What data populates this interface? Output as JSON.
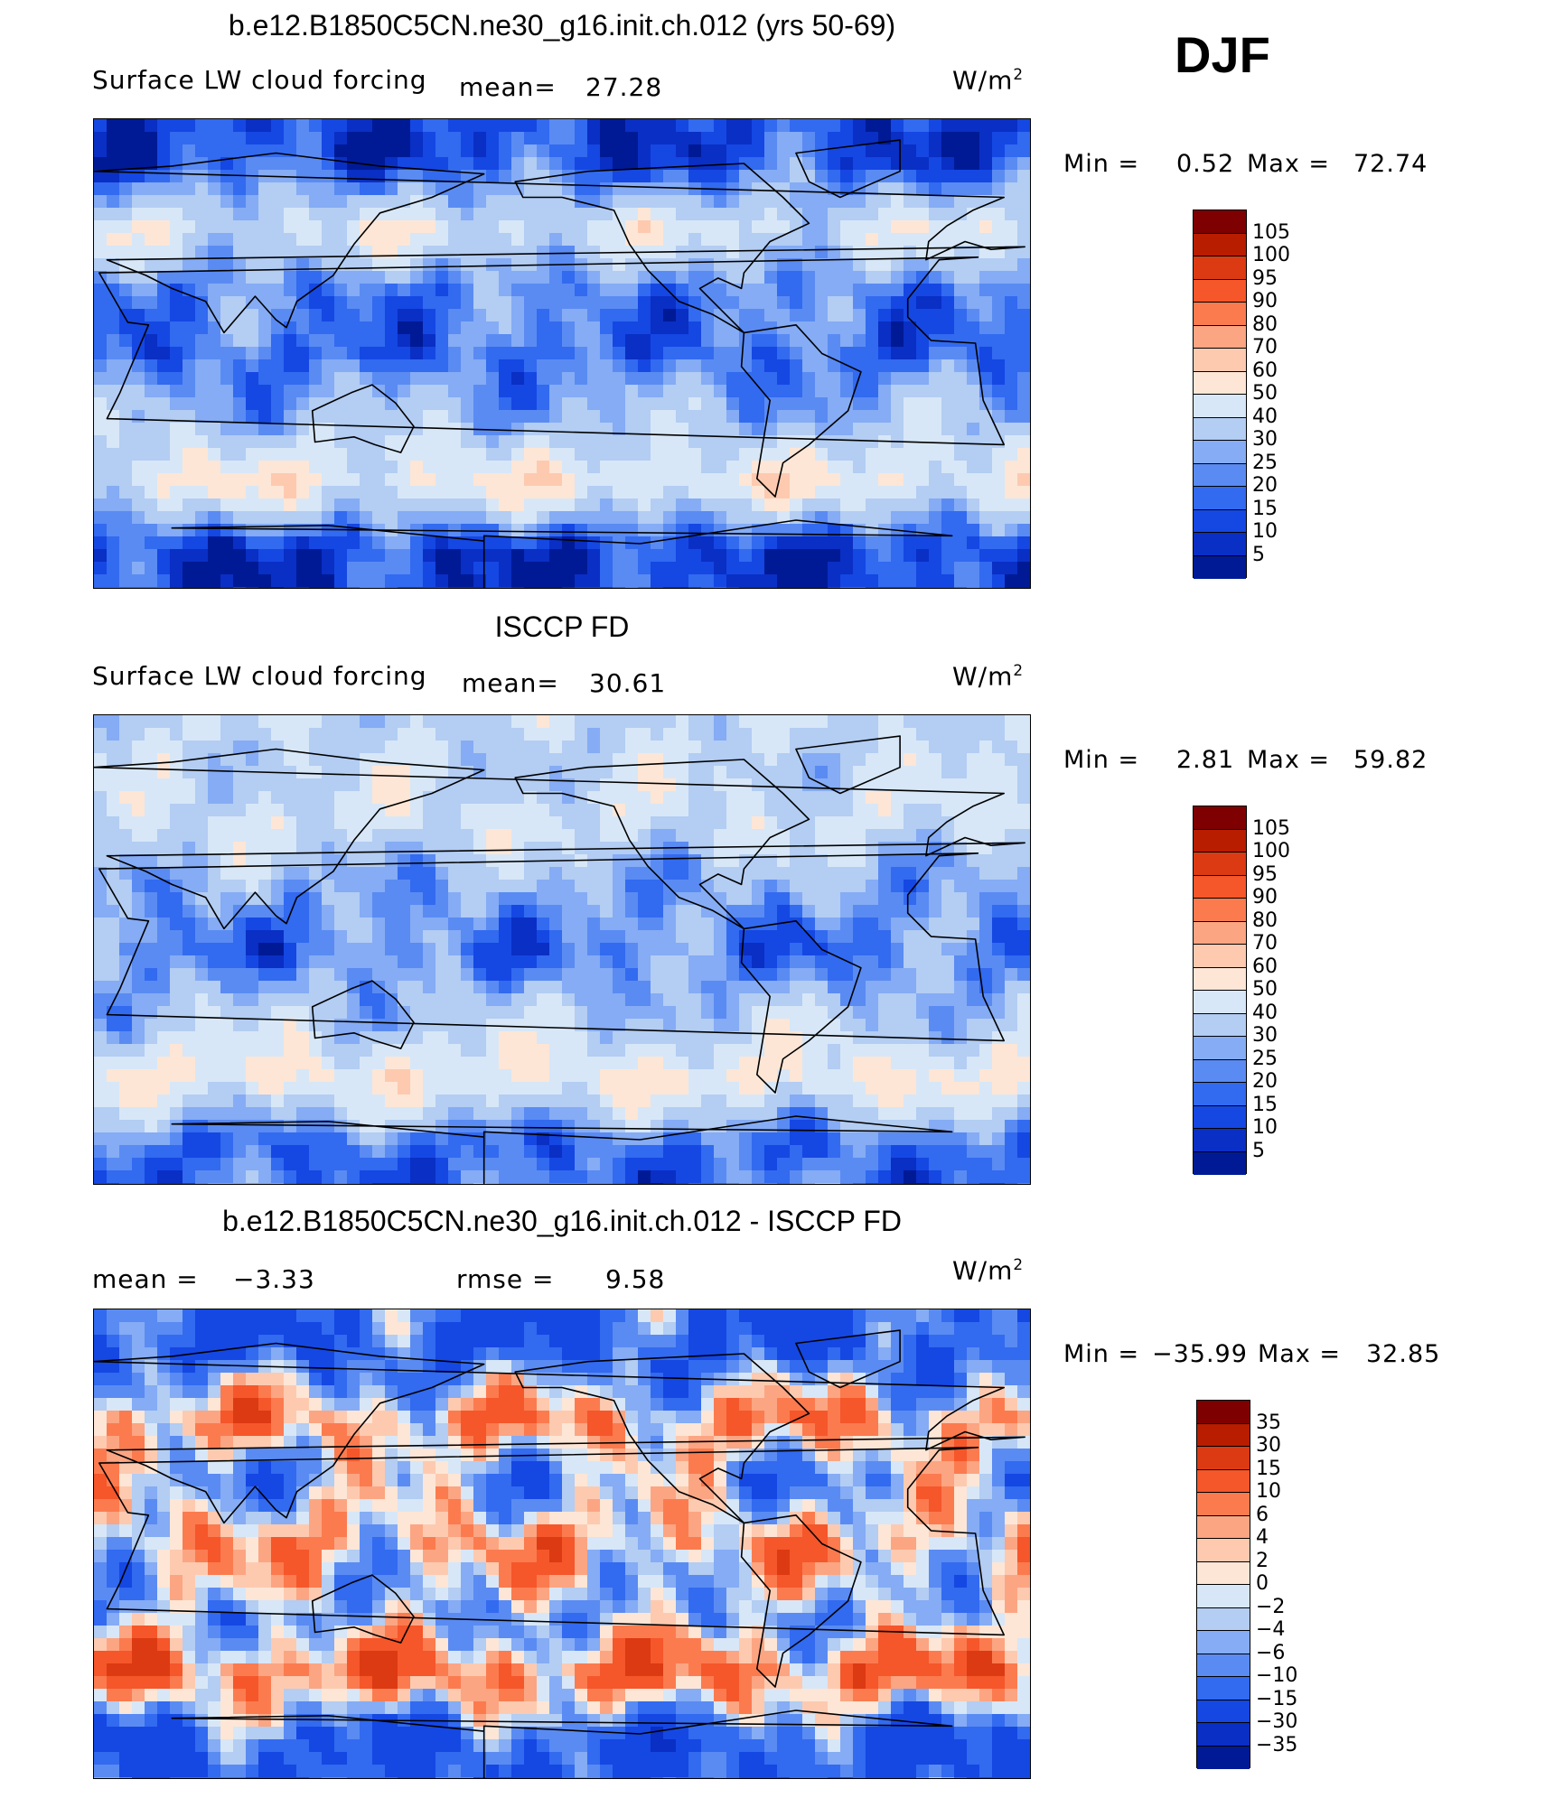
{
  "season": "DJF",
  "units_main": "W/m",
  "units_exp": "2",
  "panels": [
    {
      "title": "b.e12.B1850C5CN.ne30_g16.init.ch.012 (yrs 50-69)",
      "variable": "Surface LW cloud forcing",
      "stat1_label": "mean=",
      "stat1_value": "27.28",
      "min_label": "Min =",
      "min_value": "0.52",
      "max_label": "Max =",
      "max_value": "72.74",
      "colorbar": [
        "105",
        "100",
        "95",
        "90",
        "80",
        "70",
        "60",
        "50",
        "40",
        "30",
        "25",
        "20",
        "15",
        "10",
        "5"
      ]
    },
    {
      "title": "ISCCP FD",
      "variable": "Surface LW cloud forcing",
      "stat1_label": "mean=",
      "stat1_value": "30.61",
      "min_label": "Min =",
      "min_value": "2.81",
      "max_label": "Max =",
      "max_value": "59.82",
      "colorbar": [
        "105",
        "100",
        "95",
        "90",
        "80",
        "70",
        "60",
        "50",
        "40",
        "30",
        "25",
        "20",
        "15",
        "10",
        "5"
      ]
    },
    {
      "title": "b.e12.B1850C5CN.ne30_g16.init.ch.012 - ISCCP FD",
      "stat1_label": "mean =",
      "stat1_value": "−3.33",
      "stat2_label": "rmse =",
      "stat2_value": "9.58",
      "min_label": "Min =",
      "min_value": "−35.99",
      "max_label": "Max =",
      "max_value": "32.85",
      "colorbar": [
        "35",
        "30",
        "15",
        "10",
        "6",
        "4",
        "2",
        "0",
        "−2",
        "−4",
        "−6",
        "−10",
        "−15",
        "−30",
        "−35"
      ]
    }
  ],
  "colors": {
    "scale": [
      "#7f0000",
      "#b81d00",
      "#dc3a12",
      "#f5562a",
      "#fb7b4f",
      "#fca582",
      "#fdcab0",
      "#fde6d6",
      "#d7e7f7",
      "#b3cdf3",
      "#85acf4",
      "#5a8bf3",
      "#326af0",
      "#1547e3",
      "#0a2fc4",
      "#001a96",
      "#000a78"
    ],
    "land_outline": "#000000"
  },
  "chart_data": [
    {
      "type": "heatmap",
      "title": "b.e12.B1850C5CN.ne30_g16.init.ch.012 (yrs 50-69)",
      "variable": "Surface LW cloud forcing",
      "units": "W/m2",
      "mean": 27.28,
      "min": 0.52,
      "max": 72.74,
      "levels": [
        5,
        10,
        15,
        20,
        25,
        30,
        40,
        50,
        60,
        70,
        80,
        90,
        95,
        100,
        105
      ],
      "zonal_bands": [
        {
          "lat": [
            60,
            90
          ],
          "value": 12
        },
        {
          "lat": [
            35,
            60
          ],
          "value": 45
        },
        {
          "lat": [
            15,
            35
          ],
          "value": 22
        },
        {
          "lat": [
            -15,
            15
          ],
          "value": 18
        },
        {
          "lat": [
            -40,
            -15
          ],
          "value": 33
        },
        {
          "lat": [
            -60,
            -40
          ],
          "value": 52
        },
        {
          "lat": [
            -90,
            -60
          ],
          "value": 10
        }
      ]
    },
    {
      "type": "heatmap",
      "title": "ISCCP FD",
      "variable": "Surface LW cloud forcing",
      "units": "W/m2",
      "mean": 30.61,
      "min": 2.81,
      "max": 59.82,
      "levels": [
        5,
        10,
        15,
        20,
        25,
        30,
        40,
        50,
        60,
        70,
        80,
        90,
        95,
        100,
        105
      ],
      "zonal_bands": [
        {
          "lat": [
            60,
            90
          ],
          "value": 38
        },
        {
          "lat": [
            35,
            60
          ],
          "value": 42
        },
        {
          "lat": [
            15,
            35
          ],
          "value": 28
        },
        {
          "lat": [
            -15,
            15
          ],
          "value": 20
        },
        {
          "lat": [
            -40,
            -15
          ],
          "value": 35
        },
        {
          "lat": [
            -60,
            -40
          ],
          "value": 52
        },
        {
          "lat": [
            -90,
            -60
          ],
          "value": 18
        }
      ]
    },
    {
      "type": "heatmap",
      "title": "b.e12.B1850C5CN.ne30_g16.init.ch.012 - ISCCP FD",
      "units": "W/m2",
      "mean": -3.33,
      "rmse": 9.58,
      "min": -35.99,
      "max": 32.85,
      "levels": [
        -35,
        -30,
        -15,
        -10,
        -6,
        -4,
        -2,
        0,
        2,
        4,
        6,
        10,
        15,
        30,
        35
      ],
      "zonal_bands": [
        {
          "lat": [
            60,
            90
          ],
          "value": -15
        },
        {
          "lat": [
            35,
            60
          ],
          "value": 6
        },
        {
          "lat": [
            15,
            35
          ],
          "value": -6
        },
        {
          "lat": [
            -15,
            15
          ],
          "value": 4
        },
        {
          "lat": [
            -40,
            -15
          ],
          "value": -6
        },
        {
          "lat": [
            -60,
            -40
          ],
          "value": 10
        },
        {
          "lat": [
            -90,
            -60
          ],
          "value": -15
        }
      ]
    }
  ]
}
